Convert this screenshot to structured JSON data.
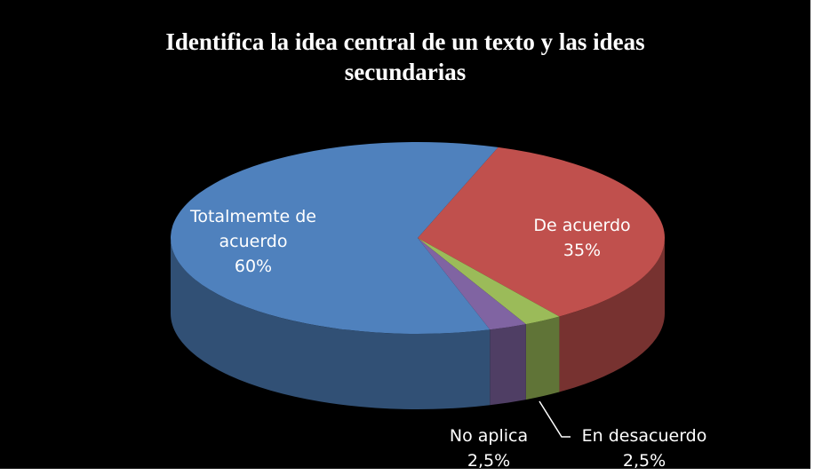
{
  "chart_data": {
    "type": "pie3d",
    "title": "Identifica la idea central de un texto y las ideas secundarias",
    "categories": [
      "De acuerdo",
      "En desacuerdo",
      "No aplica",
      "Totalmemte de acuerdo"
    ],
    "values": [
      35,
      2.5,
      2.5,
      60
    ],
    "value_labels": [
      "35%",
      "2,5%",
      "2,5%",
      "60%"
    ],
    "colors": [
      "#c0504d",
      "#9bbb59",
      "#8064a2",
      "#4f81bd"
    ]
  }
}
